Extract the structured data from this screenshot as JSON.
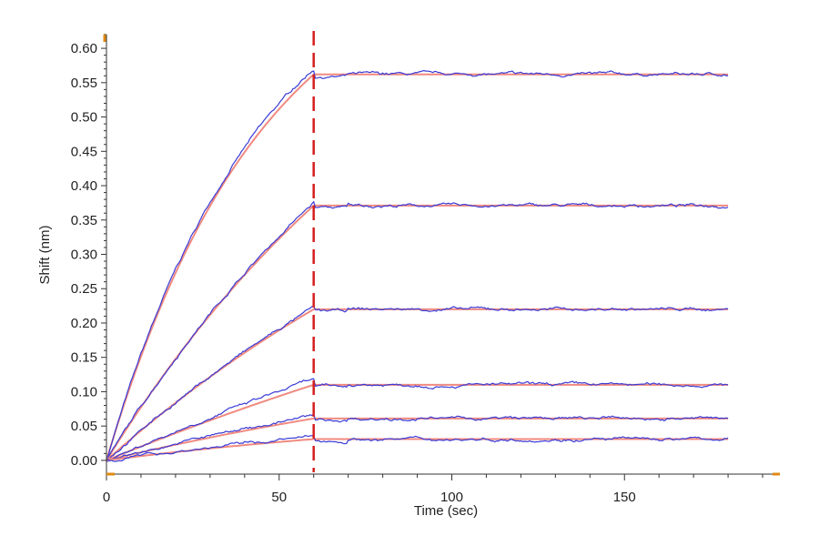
{
  "chart_data": {
    "type": "line",
    "xlabel": "Time (sec)",
    "ylabel": "Shift (nm)",
    "xlim": [
      0,
      195
    ],
    "ylim": [
      -0.02,
      0.62
    ],
    "x_ticks": [
      0,
      50,
      100,
      150
    ],
    "y_ticks": [
      0.0,
      0.05,
      0.1,
      0.15,
      0.2,
      0.25,
      0.3,
      0.35,
      0.4,
      0.45,
      0.5,
      0.55,
      0.6
    ],
    "association_end": 60,
    "x_end": 180,
    "grid": false,
    "colors": {
      "measured": "#3b3bd6",
      "fit": "#f08a80",
      "divider": "#d62020",
      "axis": "#333333",
      "corner_marker": "#e08a10"
    },
    "series": [
      {
        "values": {
          "plateau_measured": 0.57,
          "plateau_fit": 0.562,
          "k": 0.022
        }
      },
      {
        "values": {
          "plateau_measured": 0.375,
          "plateau_fit": 0.371,
          "k": 0.0095
        }
      },
      {
        "values": {
          "plateau_measured": 0.222,
          "plateau_fit": 0.22,
          "k": 0.007
        }
      },
      {
        "values": {
          "plateau_measured": 0.118,
          "plateau_fit": 0.11,
          "k": 0.004
        }
      },
      {
        "values": {
          "plateau_measured": 0.065,
          "plateau_fit": 0.061,
          "k": 0.006
        }
      },
      {
        "values": {
          "plateau_measured": 0.034,
          "plateau_fit": 0.031,
          "k": 0.008
        }
      }
    ]
  }
}
